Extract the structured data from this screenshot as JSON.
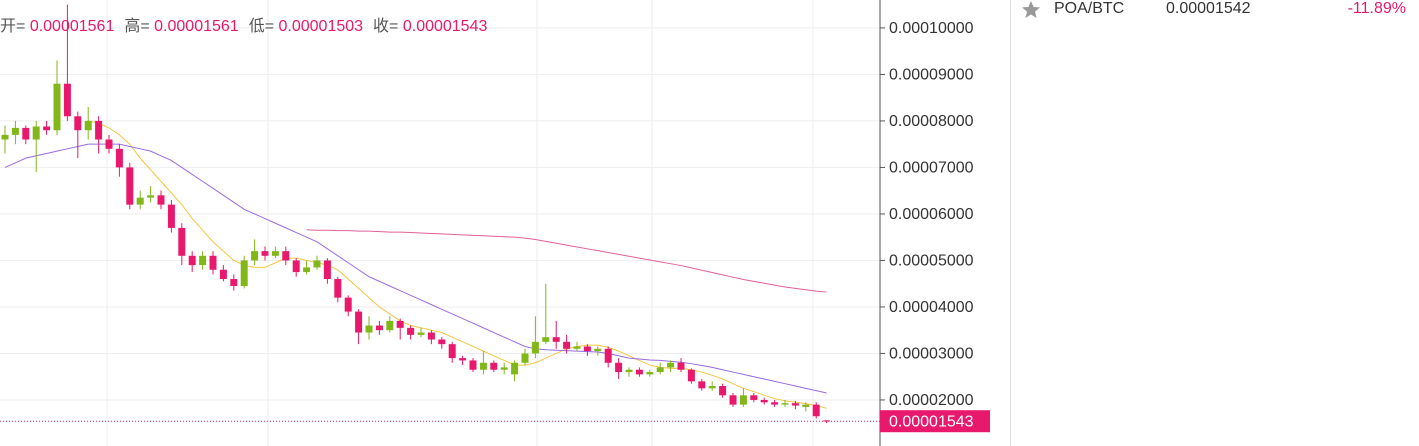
{
  "chart_data": {
    "type": "candlestick",
    "ohlc_header": [
      {
        "label": "开=",
        "value": "0.00001561"
      },
      {
        "label": "高=",
        "value": "0.00001561"
      },
      {
        "label": "低=",
        "value": "0.00001503"
      },
      {
        "label": "收=",
        "value": "0.00001543"
      }
    ],
    "up_color": "#82b71a",
    "down_color": "#e8186d",
    "ylim": [
      1.01e-05,
      0.000106
    ],
    "yticks": [
      {
        "value": 2e-05,
        "label": "0.00002000"
      },
      {
        "value": 3e-05,
        "label": "0.00003000"
      },
      {
        "value": 4e-05,
        "label": "0.00004000"
      },
      {
        "value": 5e-05,
        "label": "0.00005000"
      },
      {
        "value": 6e-05,
        "label": "0.00006000"
      },
      {
        "value": 7e-05,
        "label": "0.00007000"
      },
      {
        "value": 8e-05,
        "label": "0.00008000"
      },
      {
        "value": 9e-05,
        "label": "0.00009000"
      },
      {
        "value": 0.0001,
        "label": "0.00010000"
      }
    ],
    "grid": true,
    "last_price": {
      "value": 1.543e-05,
      "label": "0.00001543"
    },
    "open": [
      7.6e-05,
      7.7e-05,
      7.85e-05,
      7.6e-05,
      7.88e-05,
      7.8e-05,
      8.8e-05,
      8.1e-05,
      7.8e-05,
      8e-05,
      7.6e-05,
      7.4e-05,
      7e-05,
      6.2e-05,
      6.35e-05,
      6.4e-05,
      6.2e-05,
      5.7e-05,
      5.1e-05,
      4.9e-05,
      5.1e-05,
      4.8e-05,
      4.6e-05,
      4.45e-05,
      5e-05,
      5.2e-05,
      5.1e-05,
      5.2e-05,
      5e-05,
      4.75e-05,
      4.85e-05,
      5e-05,
      4.6e-05,
      4.2e-05,
      3.9e-05,
      3.45e-05,
      3.6e-05,
      3.5e-05,
      3.7e-05,
      3.55e-05,
      3.4e-05,
      3.45e-05,
      3.3e-05,
      3.2e-05,
      2.9e-05,
      2.85e-05,
      2.65e-05,
      2.8e-05,
      2.65e-05,
      2.55e-05,
      2.8e-05,
      3e-05,
      3.25e-05,
      3.35e-05,
      3.25e-05,
      3.1e-05,
      3.15e-05,
      3.05e-05,
      3.1e-05,
      2.8e-05,
      2.6e-05,
      2.65e-05,
      2.55e-05,
      2.6e-05,
      2.7e-05,
      2.8e-05,
      2.65e-05,
      2.4e-05,
      2.25e-05,
      2.3e-05,
      2.1e-05,
      1.9e-05,
      2.1e-05,
      2e-05,
      1.95e-05,
      1.9e-05,
      1.93e-05,
      1.85e-05,
      1.9e-05,
      1.561e-05
    ],
    "high": [
      7.9e-05,
      8e-05,
      7.9e-05,
      8e-05,
      8e-05,
      9.3e-05,
      0.000105,
      8.2e-05,
      8.3e-05,
      8.1e-05,
      7.7e-05,
      7.5e-05,
      7.1e-05,
      6.5e-05,
      6.6e-05,
      6.5e-05,
      6.3e-05,
      5.8e-05,
      5.2e-05,
      5.2e-05,
      5.2e-05,
      4.9e-05,
      4.7e-05,
      5.1e-05,
      5.45e-05,
      5.3e-05,
      5.3e-05,
      5.3e-05,
      5.05e-05,
      5e-05,
      5.1e-05,
      5.05e-05,
      4.65e-05,
      4.25e-05,
      3.95e-05,
      3.8e-05,
      3.7e-05,
      3.8e-05,
      3.75e-05,
      3.6e-05,
      3.55e-05,
      3.5e-05,
      3.35e-05,
      3.25e-05,
      2.95e-05,
      2.9e-05,
      3.05e-05,
      2.85e-05,
      2.8e-05,
      2.85e-05,
      3.1e-05,
      3.8e-05,
      4.5e-05,
      3.7e-05,
      3.4e-05,
      3.25e-05,
      3.2e-05,
      3.15e-05,
      3.15e-05,
      2.9e-05,
      2.7e-05,
      2.7e-05,
      2.65e-05,
      2.8e-05,
      2.85e-05,
      2.9e-05,
      2.68e-05,
      2.45e-05,
      2.4e-05,
      2.35e-05,
      2.15e-05,
      2.25e-05,
      2.15e-05,
      2.05e-05,
      2e-05,
      2e-05,
      1.98e-05,
      1.95e-05,
      1.95e-05,
      1.561e-05
    ],
    "low": [
      7.3e-05,
      7.5e-05,
      7.5e-05,
      6.9e-05,
      7.7e-05,
      7.7e-05,
      8e-05,
      7.2e-05,
      7.6e-05,
      7.3e-05,
      7.3e-05,
      6.8e-05,
      6.1e-05,
      6.1e-05,
      6.25e-05,
      6.1e-05,
      5.6e-05,
      4.9e-05,
      4.75e-05,
      4.8e-05,
      4.7e-05,
      4.55e-05,
      4.35e-05,
      4.4e-05,
      4.9e-05,
      5e-05,
      5.05e-05,
      4.9e-05,
      4.65e-05,
      4.7e-05,
      4.8e-05,
      4.5e-05,
      4.1e-05,
      3.8e-05,
      3.2e-05,
      3.3e-05,
      3.4e-05,
      3.45e-05,
      3.3e-05,
      3.3e-05,
      3.35e-05,
      3.2e-05,
      3.1e-05,
      2.8e-05,
      2.75e-05,
      2.6e-05,
      2.55e-05,
      2.6e-05,
      2.55e-05,
      2.4e-05,
      2.75e-05,
      2.9e-05,
      3.2e-05,
      3.1e-05,
      3e-05,
      3.05e-05,
      2.95e-05,
      2.95e-05,
      2.7e-05,
      2.45e-05,
      2.5e-05,
      2.5e-05,
      2.5e-05,
      2.55e-05,
      2.6e-05,
      2.6e-05,
      2.35e-05,
      2.2e-05,
      2.2e-05,
      2.05e-05,
      1.85e-05,
      1.85e-05,
      1.95e-05,
      1.9e-05,
      1.85e-05,
      1.85e-05,
      1.8e-05,
      1.75e-05,
      1.6e-05,
      1.503e-05
    ],
    "close": [
      7.7e-05,
      7.85e-05,
      7.6e-05,
      7.88e-05,
      7.8e-05,
      8.8e-05,
      8.1e-05,
      7.8e-05,
      8e-05,
      7.6e-05,
      7.4e-05,
      7e-05,
      6.2e-05,
      6.35e-05,
      6.4e-05,
      6.2e-05,
      5.7e-05,
      5.1e-05,
      4.9e-05,
      5.1e-05,
      4.8e-05,
      4.6e-05,
      4.45e-05,
      5e-05,
      5.2e-05,
      5.1e-05,
      5.2e-05,
      5e-05,
      4.75e-05,
      4.85e-05,
      5e-05,
      4.6e-05,
      4.2e-05,
      3.9e-05,
      3.45e-05,
      3.6e-05,
      3.5e-05,
      3.7e-05,
      3.55e-05,
      3.4e-05,
      3.45e-05,
      3.3e-05,
      3.2e-05,
      2.9e-05,
      2.85e-05,
      2.65e-05,
      2.8e-05,
      2.65e-05,
      2.7e-05,
      2.8e-05,
      3e-05,
      3.25e-05,
      3.35e-05,
      3.25e-05,
      3.1e-05,
      3.15e-05,
      3.05e-05,
      3.1e-05,
      2.8e-05,
      2.6e-05,
      2.65e-05,
      2.55e-05,
      2.6e-05,
      2.7e-05,
      2.8e-05,
      2.65e-05,
      2.4e-05,
      2.25e-05,
      2.3e-05,
      2.1e-05,
      1.9e-05,
      2.1e-05,
      2e-05,
      1.95e-05,
      1.9e-05,
      1.93e-05,
      1.88e-05,
      1.9e-05,
      1.65e-05,
      1.543e-05
    ],
    "series": [
      {
        "color": "#f5c542",
        "values": [
          null,
          null,
          null,
          null,
          null,
          null,
          null,
          null,
          8e-05,
          7.95e-05,
          7.85e-05,
          7.7e-05,
          7.5e-05,
          7.2e-05,
          6.95e-05,
          6.7e-05,
          6.45e-05,
          6.2e-05,
          5.9e-05,
          5.65e-05,
          5.4e-05,
          5.2e-05,
          5e-05,
          4.9e-05,
          4.85e-05,
          4.85e-05,
          4.95e-05,
          5.05e-05,
          5.05e-05,
          5e-05,
          4.95e-05,
          4.9e-05,
          4.8e-05,
          4.6e-05,
          4.4e-05,
          4.2e-05,
          4e-05,
          3.85e-05,
          3.7e-05,
          3.6e-05,
          3.55e-05,
          3.5e-05,
          3.45e-05,
          3.35e-05,
          3.25e-05,
          3.15e-05,
          3.05e-05,
          2.95e-05,
          2.85e-05,
          2.75e-05,
          2.75e-05,
          2.8e-05,
          2.9e-05,
          3e-05,
          3.1e-05,
          3.15e-05,
          3.18e-05,
          3.18e-05,
          3.13e-05,
          3.05e-05,
          2.95e-05,
          2.85e-05,
          2.75e-05,
          2.7e-05,
          2.68e-05,
          2.68e-05,
          2.65e-05,
          2.6e-05,
          2.53e-05,
          2.45e-05,
          2.35e-05,
          2.25e-05,
          2.18e-05,
          2.1e-05,
          2.03e-05,
          1.98e-05,
          1.95e-05,
          1.92e-05,
          1.88e-05,
          1.82e-05
        ]
      },
      {
        "color": "#9a6ae0",
        "values": [
          7e-05,
          7.1e-05,
          7.2e-05,
          7.25e-05,
          7.3e-05,
          7.35e-05,
          7.4e-05,
          7.45e-05,
          7.5e-05,
          7.5e-05,
          7.5e-05,
          7.5e-05,
          7.45e-05,
          7.4e-05,
          7.35e-05,
          7.25e-05,
          7.15e-05,
          7e-05,
          6.85e-05,
          6.7e-05,
          6.55e-05,
          6.4e-05,
          6.25e-05,
          6.1e-05,
          6e-05,
          5.9e-05,
          5.8e-05,
          5.7e-05,
          5.6e-05,
          5.5e-05,
          5.4e-05,
          5.25e-05,
          5.1e-05,
          4.95e-05,
          4.8e-05,
          4.65e-05,
          4.55e-05,
          4.45e-05,
          4.35e-05,
          4.25e-05,
          4.15e-05,
          4.05e-05,
          3.95e-05,
          3.85e-05,
          3.75e-05,
          3.65e-05,
          3.55e-05,
          3.45e-05,
          3.35e-05,
          3.25e-05,
          3.15e-05,
          3.1e-05,
          3.08e-05,
          3.07e-05,
          3.06e-05,
          3.05e-05,
          3.04e-05,
          3.03e-05,
          3e-05,
          2.95e-05,
          2.9e-05,
          2.88e-05,
          2.86e-05,
          2.85e-05,
          2.83e-05,
          2.81e-05,
          2.78e-05,
          2.74e-05,
          2.7e-05,
          2.65e-05,
          2.6e-05,
          2.55e-05,
          2.5e-05,
          2.45e-05,
          2.4e-05,
          2.35e-05,
          2.3e-05,
          2.25e-05,
          2.2e-05,
          2.15e-05
        ]
      },
      {
        "color": "#e2609a",
        "values": [
          null,
          null,
          null,
          null,
          null,
          null,
          null,
          null,
          null,
          null,
          null,
          null,
          null,
          null,
          null,
          null,
          null,
          null,
          null,
          null,
          null,
          null,
          null,
          null,
          null,
          null,
          null,
          null,
          null,
          5.66e-05,
          5.65e-05,
          5.65e-05,
          5.64e-05,
          5.64e-05,
          5.63e-05,
          5.63e-05,
          5.62e-05,
          5.61e-05,
          5.61e-05,
          5.6e-05,
          5.59e-05,
          5.58e-05,
          5.57e-05,
          5.56e-05,
          5.55e-05,
          5.54e-05,
          5.53e-05,
          5.52e-05,
          5.51e-05,
          5.5e-05,
          5.48e-05,
          5.45e-05,
          5.41e-05,
          5.37e-05,
          5.33e-05,
          5.29e-05,
          5.25e-05,
          5.21e-05,
          5.17e-05,
          5.13e-05,
          5.09e-05,
          5.05e-05,
          5.01e-05,
          4.97e-05,
          4.93e-05,
          4.89e-05,
          4.84e-05,
          4.79e-05,
          4.74e-05,
          4.69e-05,
          4.64e-05,
          4.59e-05,
          4.55e-05,
          4.51e-05,
          4.47e-05,
          4.43e-05,
          4.4e-05,
          4.37e-05,
          4.34e-05,
          4.32e-05
        ]
      }
    ]
  },
  "watchlist": [
    {
      "symbol": "POA/BTC",
      "price": "0.00001542",
      "change": "-11.89%"
    }
  ]
}
